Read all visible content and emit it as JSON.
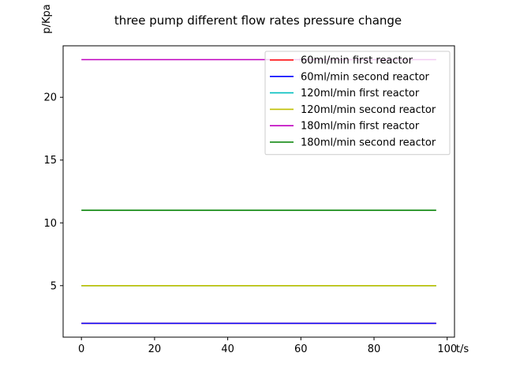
{
  "chart_data": {
    "type": "line",
    "title": "three pump different flow rates pressure change",
    "xlabel": "t/s",
    "ylabel": "p/Kpa",
    "xlim": [
      -5,
      102
    ],
    "ylim": [
      0.9,
      24.1
    ],
    "xticks": [
      0,
      20,
      40,
      60,
      80,
      100
    ],
    "yticks": [
      5,
      10,
      15,
      20
    ],
    "grid": false,
    "legend_position": "top-right",
    "x": [
      0,
      97
    ],
    "series": [
      {
        "name": "60ml/min first reactor",
        "color": "#ff0000",
        "values": [
          2,
          2
        ]
      },
      {
        "name": "60ml/min second reactor",
        "color": "#0000ff",
        "values": [
          2,
          2
        ]
      },
      {
        "name": "120ml/min first reactor",
        "color": "#00bfbf",
        "values": [
          5,
          5
        ]
      },
      {
        "name": "120ml/min second reactor",
        "color": "#bfbf00",
        "values": [
          5,
          5
        ]
      },
      {
        "name": "180ml/min first reactor",
        "color": "#bf00bf",
        "values": [
          23,
          23
        ]
      },
      {
        "name": "180ml/min second reactor",
        "color": "#008000",
        "values": [
          11,
          11
        ]
      }
    ]
  }
}
